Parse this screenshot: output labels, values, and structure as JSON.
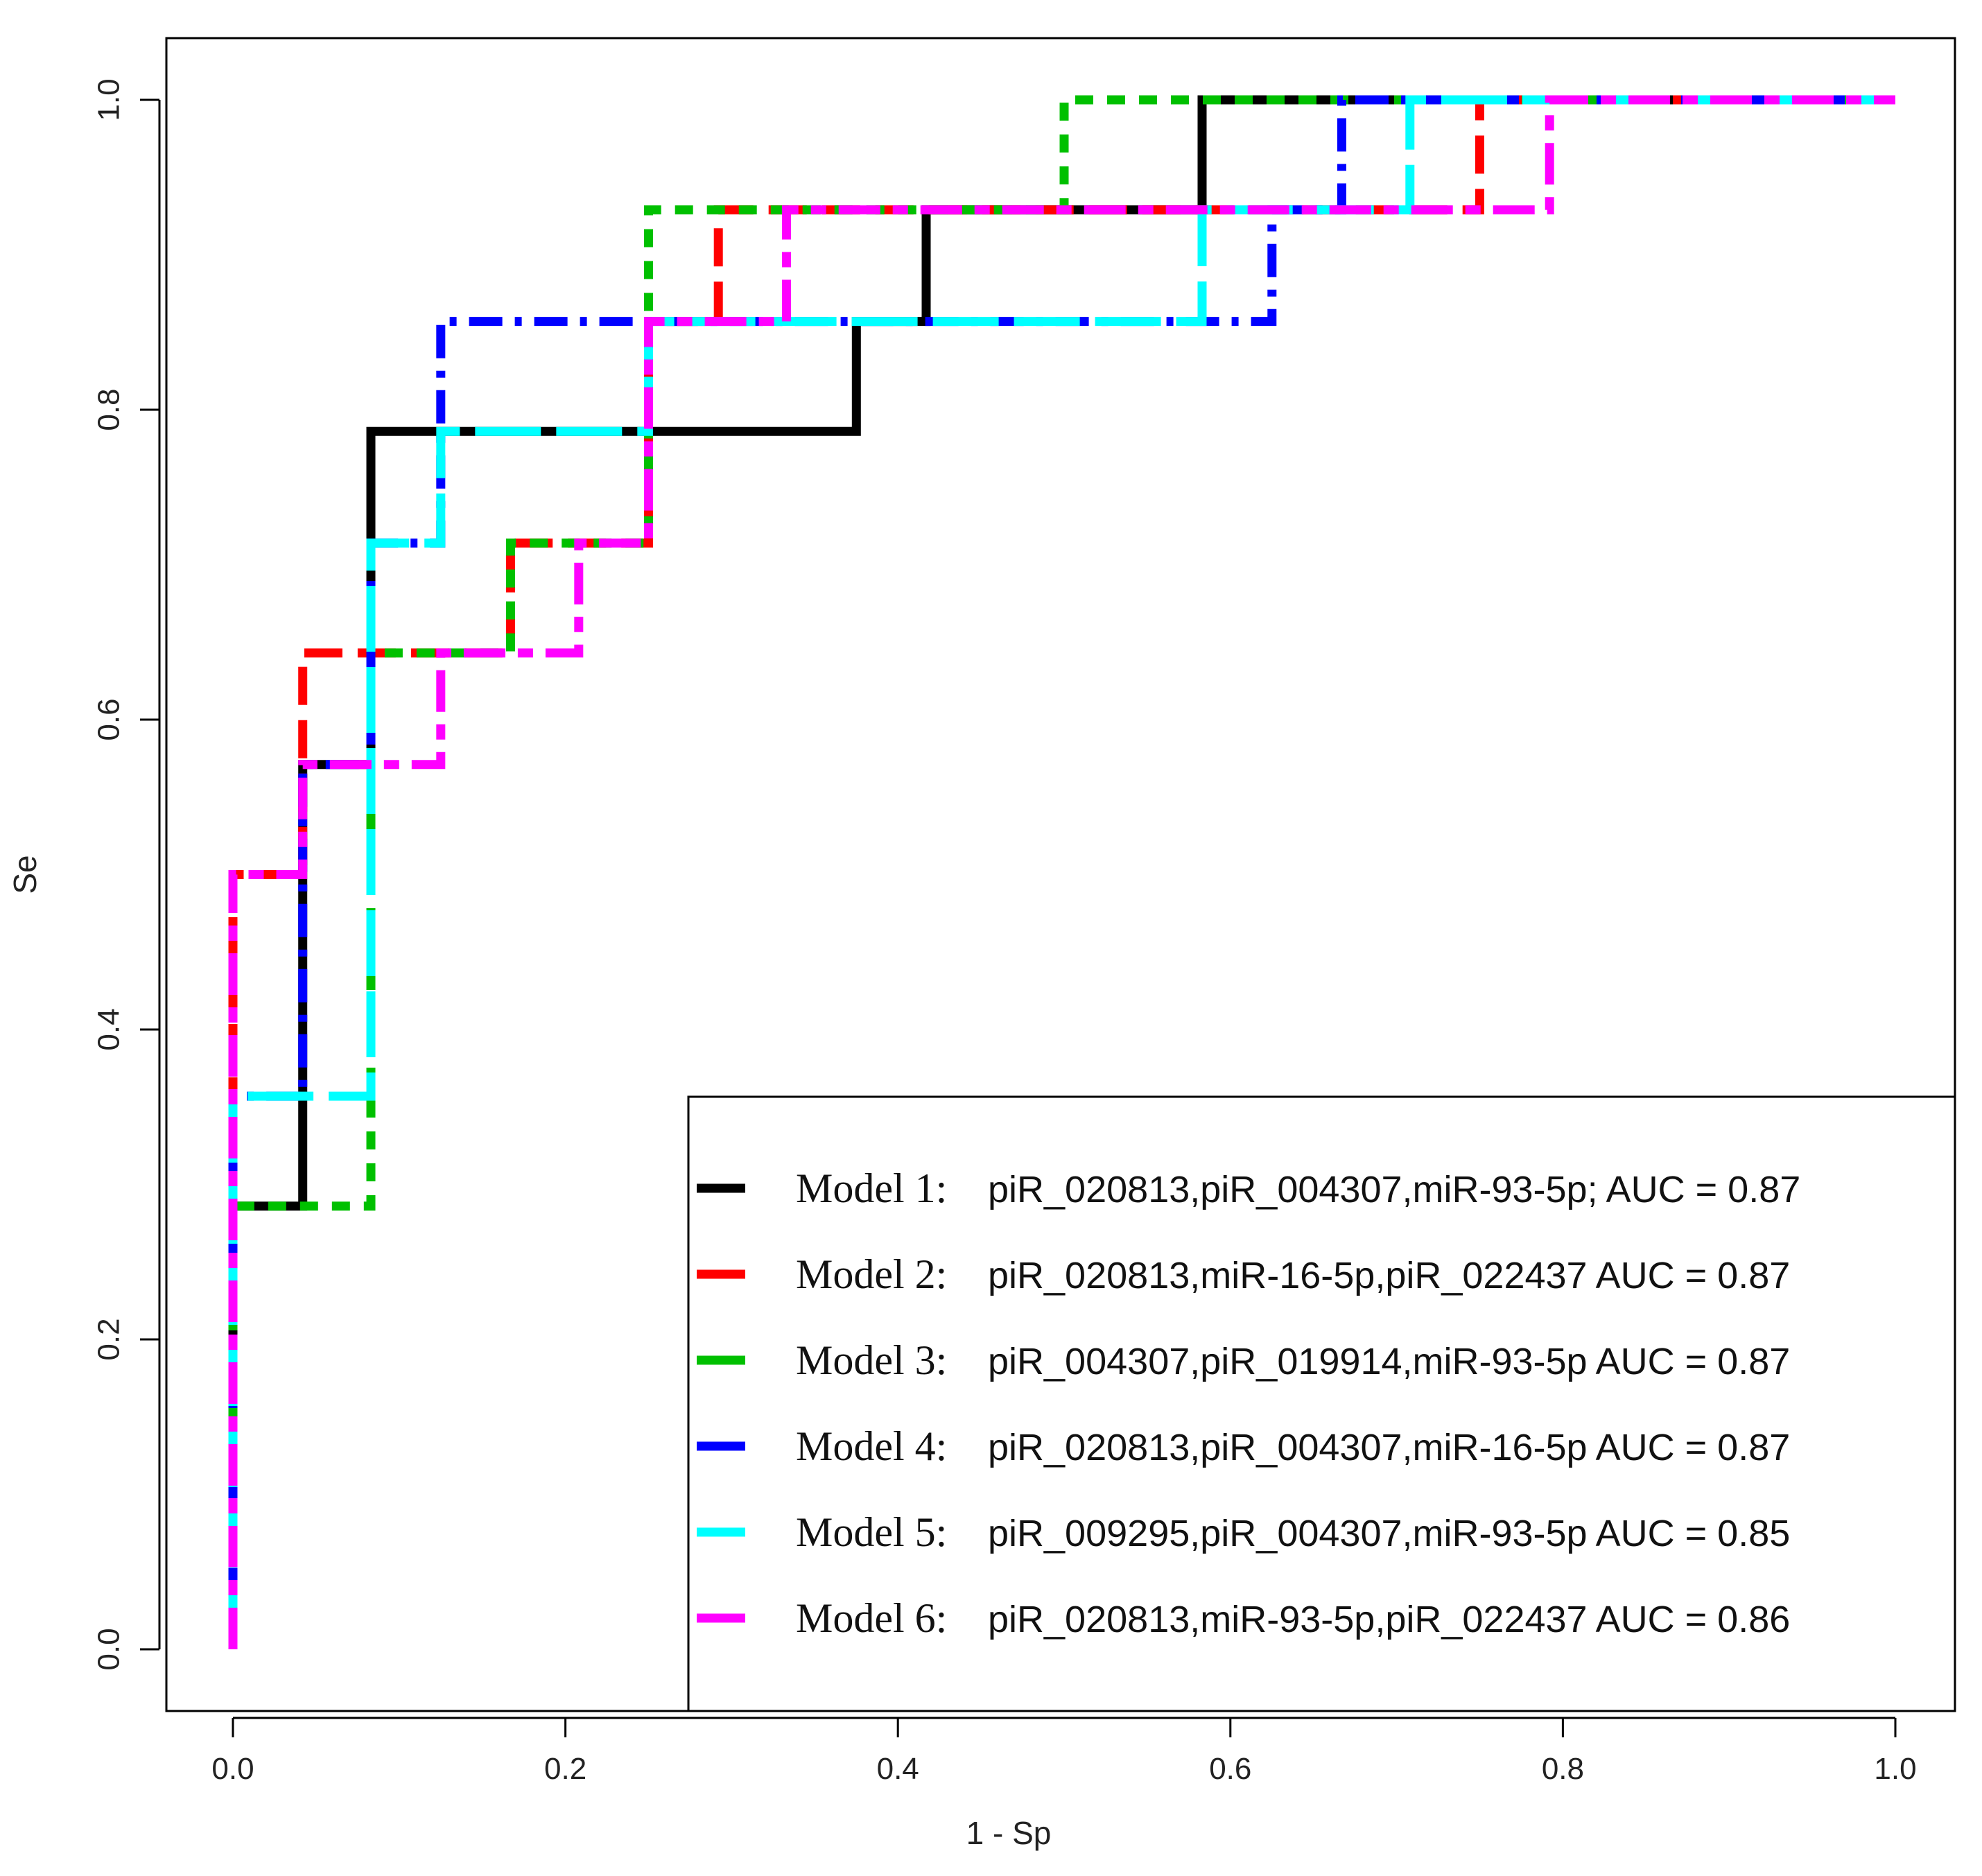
{
  "chart_data": {
    "type": "line",
    "xlabel": "1 - Sp",
    "ylabel": "Se",
    "xlim": [
      0,
      1
    ],
    "ylim": [
      0,
      1
    ],
    "x_ticks": [
      "0.0",
      "0.2",
      "0.4",
      "0.6",
      "0.8",
      "1.0"
    ],
    "y_ticks": [
      "0.0",
      "0.2",
      "0.4",
      "0.6",
      "0.8",
      "1.0"
    ],
    "grid": false,
    "legend_position": "bottom-right",
    "series": [
      {
        "name": "Model 1:",
        "label": "piR_020813,piR_004307,miR-93-5p; AUC =  0.87",
        "color": "#000000",
        "dash": "solid",
        "points": [
          [
            0,
            0
          ],
          [
            0,
            0.286
          ],
          [
            0.042,
            0.286
          ],
          [
            0.042,
            0.571
          ],
          [
            0.083,
            0.571
          ],
          [
            0.083,
            0.786
          ],
          [
            0.375,
            0.786
          ],
          [
            0.375,
            0.857
          ],
          [
            0.417,
            0.857
          ],
          [
            0.417,
            0.929
          ],
          [
            0.583,
            0.929
          ],
          [
            0.583,
            1
          ],
          [
            1,
            1
          ]
        ]
      },
      {
        "name": "Model 2:",
        "label": "piR_020813,miR-16-5p,piR_022437 AUC =  0.87",
        "color": "#ff0000",
        "dash": "long",
        "points": [
          [
            0,
            0
          ],
          [
            0,
            0.5
          ],
          [
            0.042,
            0.5
          ],
          [
            0.042,
            0.643
          ],
          [
            0.167,
            0.643
          ],
          [
            0.167,
            0.714
          ],
          [
            0.25,
            0.714
          ],
          [
            0.25,
            0.857
          ],
          [
            0.292,
            0.857
          ],
          [
            0.292,
            0.929
          ],
          [
            0.75,
            0.929
          ],
          [
            0.75,
            1
          ],
          [
            1,
            1
          ]
        ]
      },
      {
        "name": "Model 3:",
        "label": "piR_004307,piR_019914,miR-93-5p AUC =  0.87",
        "color": "#00c000",
        "dash": "short",
        "points": [
          [
            0,
            0
          ],
          [
            0,
            0.286
          ],
          [
            0.083,
            0.286
          ],
          [
            0.083,
            0.643
          ],
          [
            0.167,
            0.643
          ],
          [
            0.167,
            0.714
          ],
          [
            0.25,
            0.714
          ],
          [
            0.25,
            0.929
          ],
          [
            0.5,
            0.929
          ],
          [
            0.5,
            1
          ],
          [
            1,
            1
          ]
        ]
      },
      {
        "name": "Model 4:",
        "label": "piR_020813,piR_004307,miR-16-5p AUC =  0.87",
        "color": "#0000ff",
        "dash": "dashdot",
        "points": [
          [
            0,
            0
          ],
          [
            0,
            0.357
          ],
          [
            0.042,
            0.357
          ],
          [
            0.042,
            0.571
          ],
          [
            0.083,
            0.571
          ],
          [
            0.083,
            0.714
          ],
          [
            0.125,
            0.714
          ],
          [
            0.125,
            0.857
          ],
          [
            0.625,
            0.857
          ],
          [
            0.625,
            0.929
          ],
          [
            0.667,
            0.929
          ],
          [
            0.667,
            1
          ],
          [
            1,
            1
          ]
        ]
      },
      {
        "name": "Model 5:",
        "label": "piR_009295,piR_004307,miR-93-5p AUC =  0.85",
        "color": "#00ffff",
        "dash": "verylong",
        "points": [
          [
            0,
            0
          ],
          [
            0,
            0.357
          ],
          [
            0.083,
            0.357
          ],
          [
            0.083,
            0.714
          ],
          [
            0.125,
            0.714
          ],
          [
            0.125,
            0.786
          ],
          [
            0.25,
            0.786
          ],
          [
            0.25,
            0.857
          ],
          [
            0.583,
            0.857
          ],
          [
            0.583,
            0.929
          ],
          [
            0.708,
            0.929
          ],
          [
            0.708,
            1
          ],
          [
            1,
            1
          ]
        ]
      },
      {
        "name": "Model 6:",
        "label": "piR_020813,miR-93-5p,piR_022437 AUC =  0.86",
        "color": "#ff00ff",
        "dash": "twodash",
        "points": [
          [
            0,
            0
          ],
          [
            0,
            0.5
          ],
          [
            0.042,
            0.5
          ],
          [
            0.042,
            0.571
          ],
          [
            0.125,
            0.571
          ],
          [
            0.125,
            0.643
          ],
          [
            0.208,
            0.643
          ],
          [
            0.208,
            0.714
          ],
          [
            0.25,
            0.714
          ],
          [
            0.25,
            0.857
          ],
          [
            0.333,
            0.857
          ],
          [
            0.333,
            0.929
          ],
          [
            0.792,
            0.929
          ],
          [
            0.792,
            1
          ],
          [
            1,
            1
          ]
        ]
      }
    ]
  }
}
